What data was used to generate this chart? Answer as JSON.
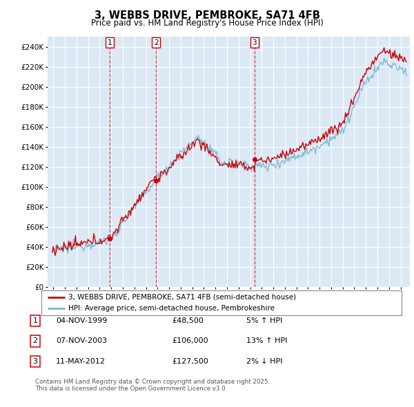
{
  "title": "3, WEBBS DRIVE, PEMBROKE, SA71 4FB",
  "subtitle": "Price paid vs. HM Land Registry's House Price Index (HPI)",
  "legend_line1": "3, WEBBS DRIVE, PEMBROKE, SA71 4FB (semi-detached house)",
  "legend_line2": "HPI: Average price, semi-detached house, Pembrokeshire",
  "transactions": [
    {
      "num": 1,
      "date": "04-NOV-1999",
      "price": 48500,
      "pct": "5%",
      "dir": "↑"
    },
    {
      "num": 2,
      "date": "07-NOV-2003",
      "price": 106000,
      "pct": "13%",
      "dir": "↑"
    },
    {
      "num": 3,
      "date": "11-MAY-2012",
      "price": 127500,
      "pct": "2%",
      "dir": "↓"
    }
  ],
  "footnote1": "Contains HM Land Registry data © Crown copyright and database right 2025.",
  "footnote2": "This data is licensed under the Open Government Licence v3.0.",
  "hpi_color": "#7ab3d4",
  "price_color": "#cc0000",
  "vline_color": "#cc0000",
  "plot_bg": "#dce9f5",
  "grid_color": "#ffffff",
  "ylim": [
    0,
    250000
  ],
  "year_start": 1995,
  "year_end": 2025,
  "t1_year": 1999.875,
  "t2_year": 2003.875,
  "t3_year": 2012.375,
  "t1_price": 48500,
  "t2_price": 106000,
  "t3_price": 127500
}
